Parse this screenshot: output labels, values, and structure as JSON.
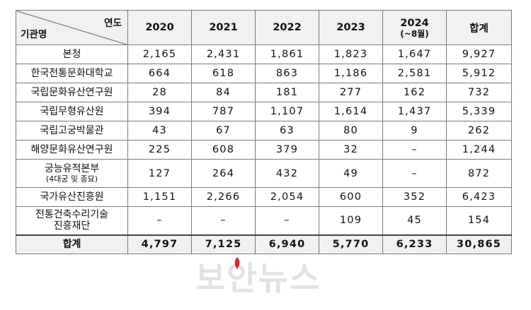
{
  "table": {
    "corner_top": "연도",
    "corner_bottom": "기관명",
    "columns": [
      {
        "label": "2020",
        "sub": ""
      },
      {
        "label": "2021",
        "sub": ""
      },
      {
        "label": "2022",
        "sub": ""
      },
      {
        "label": "2023",
        "sub": ""
      },
      {
        "label": "2024",
        "sub": "(~8월)"
      },
      {
        "label": "합계",
        "sub": ""
      }
    ],
    "rows": [
      {
        "name": "본청",
        "name_sub": "",
        "values": [
          "2,165",
          "2,431",
          "1,861",
          "1,823",
          "1,647",
          "9,927"
        ]
      },
      {
        "name": "한국전통문화대학교",
        "name_sub": "",
        "values": [
          "664",
          "618",
          "863",
          "1,186",
          "2,581",
          "5,912"
        ]
      },
      {
        "name": "국립문화유산연구원",
        "name_sub": "",
        "values": [
          "28",
          "84",
          "181",
          "277",
          "162",
          "732"
        ]
      },
      {
        "name": "국립무형유산원",
        "name_sub": "",
        "values": [
          "394",
          "787",
          "1,107",
          "1,614",
          "1,437",
          "5,339"
        ]
      },
      {
        "name": "국립고궁박물관",
        "name_sub": "",
        "values": [
          "43",
          "67",
          "63",
          "80",
          "9",
          "262"
        ]
      },
      {
        "name": "해양문화유산연구원",
        "name_sub": "",
        "values": [
          "225",
          "608",
          "379",
          "32",
          "–",
          "1,244"
        ]
      },
      {
        "name": "궁능유적본부",
        "name_sub": "(4대궁 및 종묘)",
        "values": [
          "127",
          "264",
          "432",
          "49",
          "–",
          "872"
        ]
      },
      {
        "name": "국가유산진흥원",
        "name_sub": "",
        "values": [
          "1,151",
          "2,266",
          "2,054",
          "600",
          "352",
          "6,423"
        ]
      },
      {
        "name": "전통건축수리기술",
        "name_sub": "진흥재단",
        "values": [
          "–",
          "–",
          "–",
          "109",
          "45",
          "154"
        ]
      }
    ],
    "total": {
      "name": "합계",
      "values": [
        "4,797",
        "7,125",
        "6,940",
        "5,770",
        "6,233",
        "30,865"
      ]
    }
  },
  "watermark": {
    "text": "보안뉴스",
    "accent_color": "#e0242b",
    "text_color": "#e2e2e2"
  }
}
